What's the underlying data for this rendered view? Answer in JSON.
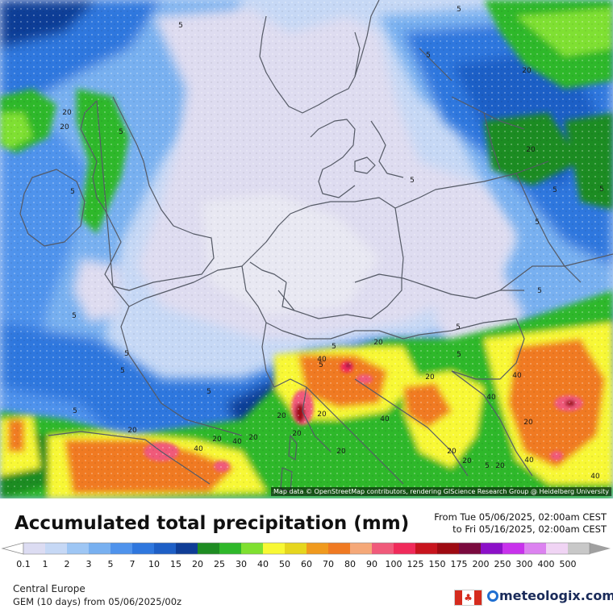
{
  "title": "Accumulated total precipitation (mm)",
  "period": {
    "from": "From Tue 05/06/2025, 02:00am CEST",
    "to": "to Fri 05/16/2025, 02:00am CEST"
  },
  "attribution": "Map data © OpenStreetMap contributors, rendering GIScience Research Group @ Heidelberg University",
  "region": "Central Europe",
  "model_run": "GEM (10 days) from 05/06/2025/00z",
  "brand": "meteologix.com",
  "flag": "canada-flag",
  "legend": {
    "items": [
      {
        "label": "0.1",
        "color": "#dcdcf2"
      },
      {
        "label": "1",
        "color": "#c6d8f5"
      },
      {
        "label": "2",
        "color": "#9ec6f4"
      },
      {
        "label": "3",
        "color": "#78b0f0"
      },
      {
        "label": "5",
        "color": "#4f93ec"
      },
      {
        "label": "7",
        "color": "#2f77de"
      },
      {
        "label": "10",
        "color": "#1e5fc6"
      },
      {
        "label": "15",
        "color": "#0f3d96"
      },
      {
        "label": "20",
        "color": "#1e8c22"
      },
      {
        "label": "25",
        "color": "#2fb82a"
      },
      {
        "label": "30",
        "color": "#7fe030"
      },
      {
        "label": "40",
        "color": "#f8f834"
      },
      {
        "label": "50",
        "color": "#e6d61e"
      },
      {
        "label": "60",
        "color": "#f09a1e"
      },
      {
        "label": "70",
        "color": "#f07a22"
      },
      {
        "label": "80",
        "color": "#f5a878"
      },
      {
        "label": "90",
        "color": "#f05a7a"
      },
      {
        "label": "100",
        "color": "#f02a5a"
      },
      {
        "label": "125",
        "color": "#c8141e"
      },
      {
        "label": "150",
        "color": "#9e0a12"
      },
      {
        "label": "175",
        "color": "#7a0a3e"
      },
      {
        "label": "200",
        "color": "#8c10c8"
      },
      {
        "label": "250",
        "color": "#c832ec"
      },
      {
        "label": "300",
        "color": "#dc82f0"
      },
      {
        "label": "400",
        "color": "#f0d4f4"
      },
      {
        "label": "500",
        "color": "#c8c8c8"
      }
    ],
    "under_color": "#ffffff",
    "over_color": "#a0a0a0"
  },
  "map_labels": [
    "5",
    "5",
    "5",
    "5",
    "5",
    "5",
    "5",
    "5",
    "5",
    "5",
    "5",
    "5",
    "5",
    "5",
    "5",
    "5",
    "5",
    "5",
    "5",
    "5",
    "20",
    "20",
    "20",
    "20",
    "20",
    "20",
    "20",
    "20",
    "20",
    "20",
    "20",
    "20",
    "20",
    "20",
    "20",
    "20",
    "20",
    "40",
    "40",
    "40",
    "40",
    "40",
    "40",
    "40",
    "40"
  ],
  "colors": {
    "very_light": "#dedcf0",
    "light_blue": "#c6d8f5",
    "mid_blue": "#78b0f0",
    "blue": "#2f77de",
    "dark_blue": "#0f3d96",
    "dark_green": "#1e8c22",
    "green": "#2fb82a",
    "lime": "#7fe030",
    "yellow": "#f8f834",
    "orange": "#f07a22",
    "pink": "#f05a7a",
    "crimson": "#9e0a12",
    "border": "#555a66"
  }
}
